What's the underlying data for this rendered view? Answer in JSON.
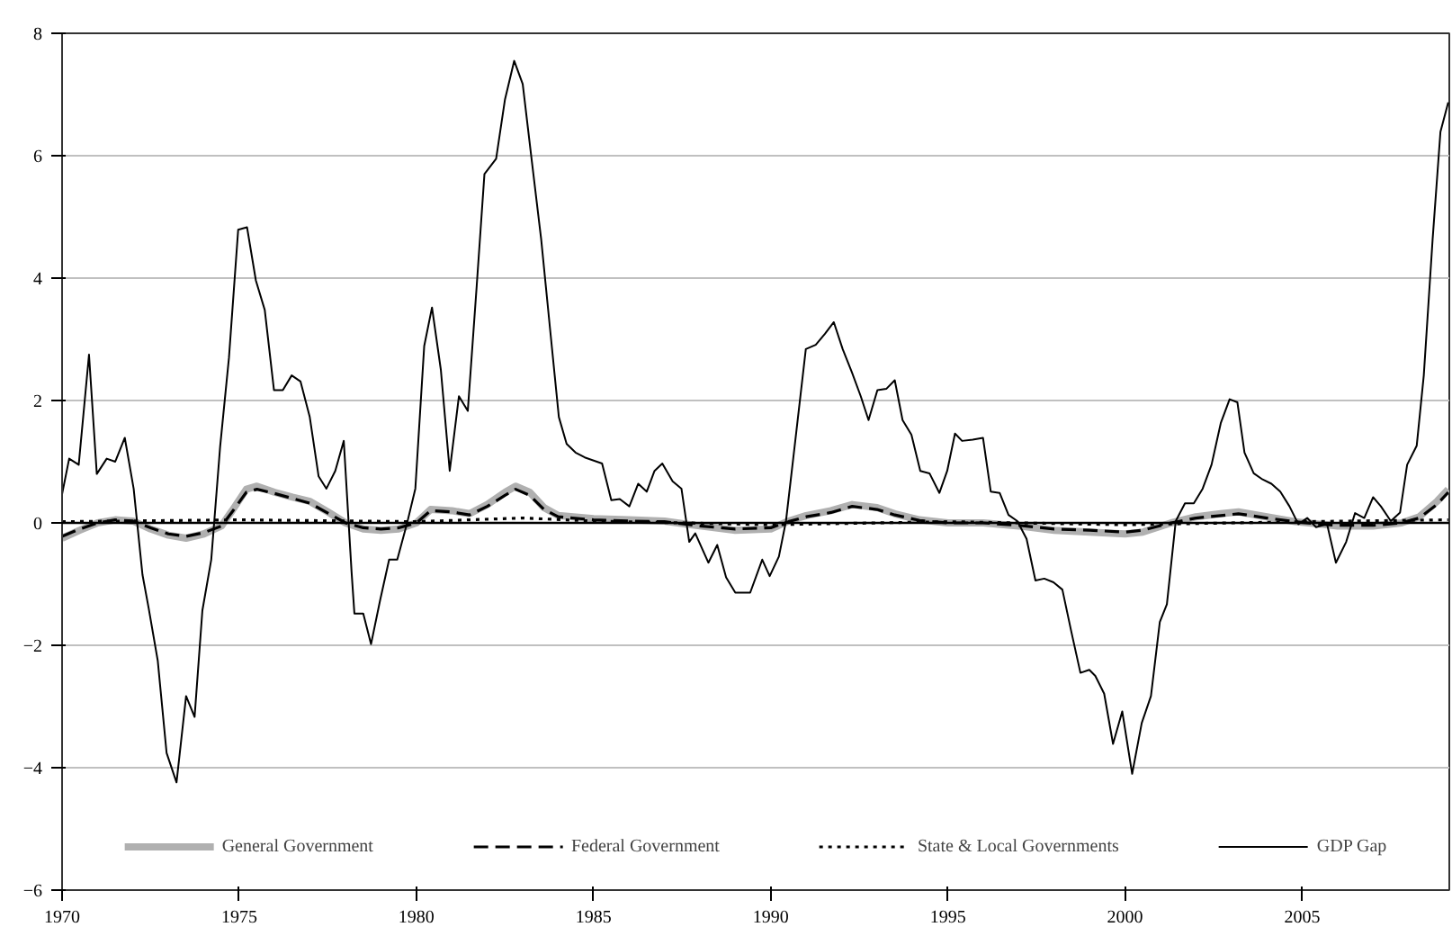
{
  "chart_data": {
    "type": "line",
    "xlim": [
      1970,
      2009.15
    ],
    "ylim": [
      -6,
      8
    ],
    "xticks": [
      1970,
      1975,
      1980,
      1985,
      1990,
      1995,
      2000,
      2005
    ],
    "yticks": [
      -6,
      -4,
      -2,
      0,
      2,
      4,
      6,
      8
    ],
    "grid": "y",
    "legend": "bottom",
    "ref_lines": [
      {
        "axis": "y",
        "value": 0,
        "color": "#000000",
        "line_style": "solid"
      }
    ],
    "series": [
      {
        "name": "General Government",
        "color": "#b0b0b0",
        "line_style": "solid",
        "x": [
          1970.0,
          1970.5,
          1971.0,
          1971.5,
          1972.0,
          1972.5,
          1973.0,
          1973.5,
          1974.0,
          1974.5,
          1974.8,
          1975.2,
          1975.5,
          1976.0,
          1976.5,
          1977.0,
          1977.5,
          1978.0,
          1978.5,
          1979.0,
          1979.5,
          1980.0,
          1980.4,
          1981.0,
          1981.5,
          1982.0,
          1982.5,
          1982.8,
          1983.2,
          1983.6,
          1984.0,
          1985.0,
          1986.0,
          1987.0,
          1988.0,
          1989.0,
          1990.0,
          1990.5,
          1991.0,
          1991.7,
          1992.3,
          1993.0,
          1993.5,
          1994.2,
          1995.0,
          1996.0,
          1997.0,
          1998.0,
          1999.0,
          2000.0,
          2000.5,
          2001.3,
          2002.0,
          2002.7,
          2003.2,
          2004.0,
          2004.8,
          2005.5,
          2006.0,
          2007.0,
          2007.8,
          2008.3,
          2008.8,
          2009.12
        ],
        "values": [
          -0.25,
          -0.12,
          0.0,
          0.05,
          0.03,
          -0.1,
          -0.2,
          -0.25,
          -0.18,
          -0.05,
          0.2,
          0.55,
          0.6,
          0.5,
          0.42,
          0.35,
          0.18,
          0.0,
          -0.1,
          -0.12,
          -0.1,
          0.0,
          0.22,
          0.2,
          0.15,
          0.3,
          0.5,
          0.6,
          0.5,
          0.25,
          0.12,
          0.07,
          0.05,
          0.03,
          -0.05,
          -0.12,
          -0.1,
          0.03,
          0.12,
          0.2,
          0.3,
          0.25,
          0.15,
          0.05,
          0.0,
          0.0,
          -0.05,
          -0.12,
          -0.15,
          -0.18,
          -0.15,
          0.0,
          0.1,
          0.15,
          0.18,
          0.1,
          0.02,
          -0.02,
          -0.05,
          -0.05,
          0.0,
          0.1,
          0.35,
          0.55
        ]
      },
      {
        "name": "Federal Government",
        "color": "#000000",
        "line_style": "dashed",
        "x": [
          1970.0,
          1970.5,
          1971.0,
          1971.5,
          1972.0,
          1972.5,
          1973.0,
          1973.5,
          1974.0,
          1974.5,
          1974.8,
          1975.2,
          1975.5,
          1976.0,
          1976.5,
          1977.0,
          1977.5,
          1978.0,
          1978.5,
          1979.0,
          1979.5,
          1980.0,
          1980.4,
          1981.0,
          1981.5,
          1982.0,
          1982.5,
          1982.8,
          1983.2,
          1983.6,
          1984.0,
          1985.0,
          1986.0,
          1987.0,
          1988.0,
          1989.0,
          1990.0,
          1990.5,
          1991.0,
          1991.7,
          1992.3,
          1993.0,
          1993.5,
          1994.2,
          1995.0,
          1996.0,
          1997.0,
          1998.0,
          1999.0,
          2000.0,
          2000.5,
          2001.3,
          2002.0,
          2002.7,
          2003.2,
          2004.0,
          2004.8,
          2005.5,
          2006.0,
          2007.0,
          2007.8,
          2008.3,
          2008.8,
          2009.12
        ],
        "values": [
          -0.22,
          -0.1,
          0.0,
          0.05,
          0.03,
          -0.08,
          -0.18,
          -0.22,
          -0.16,
          -0.05,
          0.18,
          0.5,
          0.55,
          0.48,
          0.4,
          0.32,
          0.16,
          0.0,
          -0.08,
          -0.1,
          -0.08,
          0.0,
          0.2,
          0.18,
          0.13,
          0.27,
          0.45,
          0.55,
          0.45,
          0.22,
          0.1,
          0.05,
          0.03,
          0.02,
          -0.05,
          -0.1,
          -0.08,
          0.02,
          0.1,
          0.17,
          0.27,
          0.22,
          0.13,
          0.04,
          0.0,
          0.0,
          -0.04,
          -0.1,
          -0.12,
          -0.15,
          -0.12,
          0.0,
          0.08,
          0.12,
          0.15,
          0.08,
          0.02,
          -0.02,
          -0.04,
          -0.04,
          0.0,
          0.08,
          0.3,
          0.5
        ]
      },
      {
        "name": "State & Local Governments",
        "color": "#000000",
        "line_style": "dotted",
        "x": [
          1970.0,
          1975.0,
          1980.0,
          1983.0,
          1985.0,
          1990.0,
          1995.0,
          2000.0,
          2005.0,
          2009.12
        ],
        "values": [
          0.02,
          0.05,
          0.02,
          0.08,
          0.03,
          -0.03,
          0.02,
          -0.03,
          0.02,
          0.05
        ]
      },
      {
        "name": "GDP Gap",
        "color": "#000000",
        "line_style": "solid",
        "x": [
          1970.0,
          1970.2,
          1970.47,
          1970.76,
          1970.98,
          1971.26,
          1971.5,
          1971.77,
          1972.02,
          1972.27,
          1972.44,
          1972.7,
          1972.95,
          1973.23,
          1973.5,
          1973.74,
          1973.96,
          1974.21,
          1974.46,
          1974.71,
          1974.97,
          1975.22,
          1975.47,
          1975.72,
          1975.98,
          1976.23,
          1976.48,
          1976.73,
          1976.99,
          1977.24,
          1977.46,
          1977.71,
          1977.95,
          1978.17,
          1978.25,
          1978.5,
          1978.72,
          1978.97,
          1979.23,
          1979.46,
          1979.73,
          1979.97,
          1980.22,
          1980.44,
          1980.69,
          1980.94,
          1981.2,
          1981.45,
          1981.7,
          1981.92,
          1982.25,
          1982.5,
          1982.76,
          1983.0,
          1983.26,
          1983.52,
          1983.77,
          1984.02,
          1984.24,
          1984.49,
          1984.75,
          1985.24,
          1985.5,
          1985.74,
          1986.01,
          1986.26,
          1986.5,
          1986.72,
          1986.94,
          1987.23,
          1987.48,
          1987.7,
          1987.87,
          1988.24,
          1988.49,
          1988.74,
          1989.0,
          1989.42,
          1989.76,
          1989.97,
          1990.23,
          1990.43,
          1990.73,
          1990.99,
          1991.27,
          1991.53,
          1991.78,
          1992.03,
          1992.29,
          1992.54,
          1992.76,
          1993.01,
          1993.26,
          1993.5,
          1993.72,
          1993.97,
          1994.22,
          1994.48,
          1994.76,
          1994.98,
          1995.2,
          1995.4,
          1995.7,
          1995.99,
          1996.21,
          1996.46,
          1996.71,
          1996.96,
          1997.22,
          1997.47,
          1997.72,
          1997.98,
          1998.23,
          1998.48,
          1998.74,
          1998.99,
          1999.16,
          1999.41,
          1999.66,
          1999.92,
          2000.2,
          2000.47,
          2000.73,
          2000.98,
          2001.18,
          2001.43,
          2001.69,
          2001.94,
          2002.19,
          2002.44,
          2002.7,
          2002.95,
          2003.17,
          2003.37,
          2003.63,
          2003.88,
          2004.13,
          2004.38,
          2004.64,
          2004.89,
          2005.14,
          2005.39,
          2005.7,
          2005.95,
          2006.24,
          2006.49,
          2006.75,
          2007.0,
          2007.22,
          2007.5,
          2007.76,
          2007.96,
          2008.23,
          2008.43,
          2008.68,
          2008.9,
          2009.12
        ],
        "values": [
          0.47,
          1.05,
          0.95,
          2.75,
          0.8,
          1.05,
          1.0,
          1.39,
          0.56,
          -0.85,
          -1.38,
          -2.25,
          -3.76,
          -4.24,
          -2.83,
          -3.17,
          -1.43,
          -0.6,
          1.24,
          2.7,
          4.79,
          4.83,
          3.96,
          3.48,
          2.17,
          2.17,
          2.41,
          2.31,
          1.73,
          0.76,
          0.56,
          0.85,
          1.34,
          -0.8,
          -1.48,
          -1.48,
          -1.98,
          -1.28,
          -0.6,
          -0.6,
          -0.02,
          0.56,
          2.89,
          3.52,
          2.5,
          0.85,
          2.07,
          1.83,
          3.86,
          5.7,
          5.95,
          6.92,
          7.55,
          7.17,
          5.9,
          4.64,
          3.18,
          1.73,
          1.29,
          1.15,
          1.07,
          0.97,
          0.37,
          0.39,
          0.27,
          0.64,
          0.51,
          0.85,
          0.97,
          0.68,
          0.56,
          -0.31,
          -0.17,
          -0.65,
          -0.36,
          -0.89,
          -1.14,
          -1.14,
          -0.6,
          -0.87,
          -0.55,
          0.03,
          1.53,
          2.84,
          2.91,
          3.09,
          3.28,
          2.84,
          2.46,
          2.07,
          1.68,
          2.17,
          2.19,
          2.33,
          1.68,
          1.44,
          0.85,
          0.81,
          0.49,
          0.85,
          1.46,
          1.34,
          1.36,
          1.39,
          0.51,
          0.49,
          0.13,
          0.03,
          -0.26,
          -0.94,
          -0.91,
          -0.97,
          -1.09,
          -1.77,
          -2.45,
          -2.4,
          -2.5,
          -2.79,
          -3.61,
          -3.08,
          -4.1,
          -3.27,
          -2.83,
          -1.62,
          -1.33,
          0.03,
          0.32,
          0.32,
          0.56,
          0.95,
          1.63,
          2.02,
          1.97,
          1.15,
          0.81,
          0.71,
          0.64,
          0.51,
          0.27,
          -0.02,
          0.08,
          -0.07,
          -0.02,
          -0.65,
          -0.31,
          0.16,
          0.08,
          0.42,
          0.27,
          0.03,
          0.17,
          0.95,
          1.26,
          2.41,
          4.64,
          6.39,
          6.87
        ]
      }
    ]
  }
}
